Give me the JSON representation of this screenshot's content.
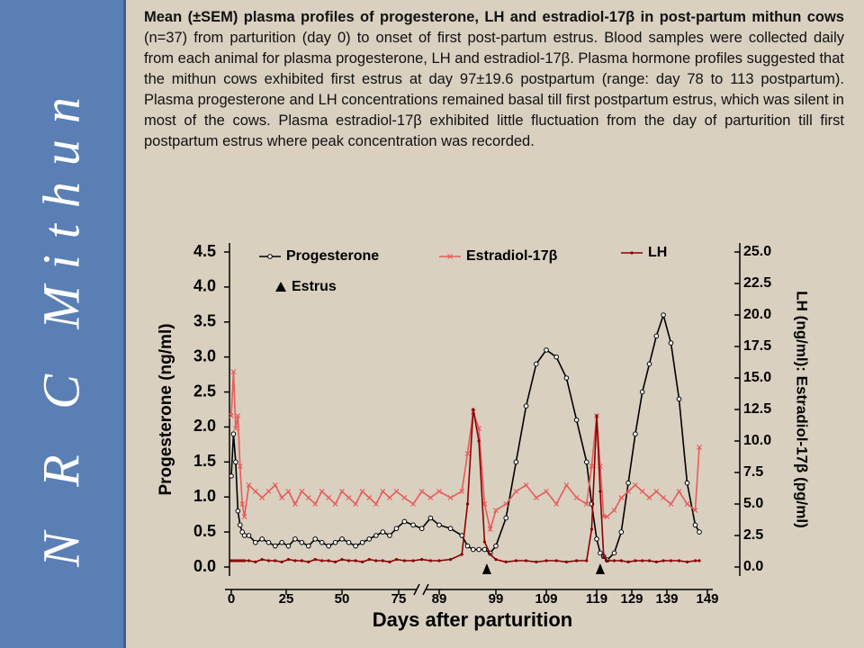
{
  "sidebar": "N R C Mithun",
  "caption_bold": "Mean (±SEM) plasma profiles of progesterone, LH and estradiol-17β in post-partum mithun cows",
  "caption_rest": " (n=37) from parturition (day 0) to onset of first post-partum estrus. Blood samples were collected daily from each animal for plasma progesterone, LH and estradiol-17β. Plasma hormone profiles suggested that the mithun cows exhibited first estrus at day 97±19.6 postpartum (range: day 78 to 113 postpartum). Plasma progesterone and LH concentrations remained basal till first postpartum estrus, which was silent in most of the cows. Plasma estradiol-17β exhibited little fluctuation from the day of parturition till first postpartum estrus where peak concentration was recorded.",
  "chart_data": {
    "type": "line",
    "xlabel": "Days after parturition",
    "ylabel": "Progesterone (ng/ml)",
    "y2label": "LH (ng/ml): Estradiol-17β (pg/ml)",
    "xlim": [
      0,
      149
    ],
    "xticks": [
      0,
      25,
      50,
      75,
      89,
      99,
      109,
      119,
      129,
      139,
      149
    ],
    "ylim": [
      0,
      4.5
    ],
    "yticks": [
      {
        "value": 0,
        "label": "0.0"
      },
      {
        "value": 0.5,
        "label": "0.5"
      },
      {
        "value": 1,
        "label": "1.0"
      },
      {
        "value": 1.5,
        "label": "1.5"
      },
      {
        "value": 2,
        "label": "2.0"
      },
      {
        "value": 2.5,
        "label": "2.5"
      },
      {
        "value": 3,
        "label": "3.0"
      },
      {
        "value": 3.5,
        "label": "3.5"
      },
      {
        "value": 4,
        "label": "4.0"
      },
      {
        "value": 4.5,
        "label": "4.5"
      }
    ],
    "y2lim": [
      0,
      25
    ],
    "y2ticks": [
      {
        "value": 0,
        "label": "0.0"
      },
      {
        "value": 2.5,
        "label": "2.5"
      },
      {
        "value": 5,
        "label": "5.0"
      },
      {
        "value": 7.5,
        "label": "7.5"
      },
      {
        "value": 10,
        "label": "10.0"
      },
      {
        "value": 12.5,
        "label": "12.5"
      },
      {
        "value": 15,
        "label": "15.0"
      },
      {
        "value": 17.5,
        "label": "17.5"
      },
      {
        "value": 20,
        "label": "20.0"
      },
      {
        "value": 22.5,
        "label": "22.5"
      },
      {
        "value": 25,
        "label": "25.0"
      }
    ],
    "x": [
      0,
      1,
      2,
      3,
      4,
      5,
      6,
      8,
      11,
      14,
      17,
      20,
      23,
      26,
      29,
      32,
      35,
      38,
      41,
      44,
      47,
      50,
      53,
      56,
      59,
      62,
      65,
      68,
      71,
      74,
      77,
      80,
      83,
      86,
      89,
      91,
      93,
      94,
      95,
      96,
      97,
      98,
      99,
      101,
      103,
      105,
      107,
      109,
      111,
      113,
      115,
      117,
      118,
      119,
      120,
      121,
      122,
      124,
      126,
      128,
      130,
      132,
      134,
      136,
      138,
      140,
      142,
      144,
      146,
      147
    ],
    "series": [
      {
        "name": "Progesterone",
        "color": "#000000",
        "marker": "circle",
        "values": [
          1.3,
          1.9,
          1.5,
          0.8,
          0.6,
          0.5,
          0.45,
          0.45,
          0.35,
          0.4,
          0.35,
          0.3,
          0.35,
          0.3,
          0.4,
          0.35,
          0.3,
          0.4,
          0.35,
          0.3,
          0.35,
          0.4,
          0.35,
          0.3,
          0.35,
          0.4,
          0.45,
          0.5,
          0.45,
          0.55,
          0.65,
          0.6,
          0.55,
          0.7,
          0.6,
          0.55,
          0.45,
          0.3,
          0.25,
          0.25,
          0.25,
          0.2,
          0.3,
          0.7,
          1.5,
          2.3,
          2.9,
          3.1,
          3.0,
          2.7,
          2.1,
          1.5,
          0.9,
          0.4,
          0.2,
          0.15,
          0.1,
          0.2,
          0.5,
          1.2,
          1.9,
          2.5,
          2.9,
          3.3,
          3.6,
          3.2,
          2.4,
          1.2,
          0.6,
          0.5
        ]
      },
      {
        "name": "Estradiol-17β",
        "color": "#e85a5a",
        "marker": "x",
        "axis": "y2",
        "values": [
          12,
          15.5,
          11,
          12,
          8,
          5,
          4,
          6.5,
          6,
          5.5,
          6,
          6.5,
          5.5,
          6,
          5,
          6,
          5.5,
          5,
          6,
          5.5,
          5,
          6,
          5.5,
          5,
          6,
          5.5,
          5,
          6,
          5.5,
          6,
          5.5,
          5,
          6,
          5.5,
          6,
          5.5,
          6,
          9,
          12.3,
          11,
          5,
          3,
          4.5,
          5,
          6,
          6.5,
          5.5,
          6,
          5,
          6.5,
          5.5,
          5,
          8,
          12,
          8,
          4,
          4,
          4.5,
          5.5,
          6,
          6.5,
          6,
          5.5,
          6,
          5.5,
          5,
          6,
          5,
          4.5,
          9.5
        ]
      },
      {
        "name": "LH",
        "color": "#8b0000",
        "marker": "dot",
        "axis": "y2",
        "values": [
          0.5,
          0.5,
          0.5,
          0.5,
          0.5,
          0.5,
          0.5,
          0.5,
          0.4,
          0.6,
          0.5,
          0.5,
          0.4,
          0.6,
          0.5,
          0.5,
          0.4,
          0.6,
          0.5,
          0.5,
          0.4,
          0.6,
          0.5,
          0.5,
          0.4,
          0.6,
          0.5,
          0.5,
          0.4,
          0.6,
          0.5,
          0.5,
          0.6,
          0.5,
          0.5,
          0.6,
          1.0,
          5,
          12.5,
          10,
          2,
          1,
          0.6,
          0.4,
          0.5,
          0.5,
          0.4,
          0.5,
          0.5,
          0.4,
          0.5,
          0.5,
          3,
          12,
          6,
          0.8,
          0.5,
          0.5,
          0.5,
          0.4,
          0.5,
          0.5,
          0.5,
          0.4,
          0.5,
          0.5,
          0.5,
          0.4,
          0.5,
          0.5
        ]
      }
    ],
    "annotation": {
      "label": "Estrus",
      "x": [
        97.4,
        120
      ]
    }
  }
}
